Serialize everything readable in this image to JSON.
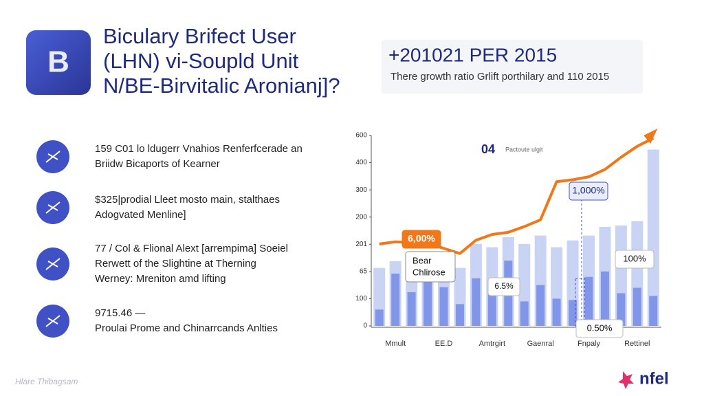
{
  "header": {
    "icon": "B",
    "title": [
      "Biculary Brifect User",
      "(LHN) vi-Soupld Unit",
      "N/BE-Birvitalic Aronianj]?"
    ]
  },
  "panel": {
    "title": "+201021 PER 2015",
    "subtitle": "There growth ratio Grlift porthilary  and 110 2015"
  },
  "items": [
    {
      "lines": [
        "159 C01 lo ldugerr Vnahios Renferfcerade an",
        "Briidw Bicaports of Kearner"
      ]
    },
    {
      "lines": [
        "$325|prodial Lleet mosto main, stalthaes",
        "Adogvated Menline]"
      ]
    },
    {
      "lines": [
        "77 / Col & Flional Alext [arrempima] Soeiel",
        "Rerwett of the Slightine at Therning",
        "Werney: Mreniton amd lifting"
      ]
    },
    {
      "lines": [
        "9715.46  —",
        "Proulai Prome and Chinarrcands Anlties"
      ]
    }
  ],
  "footer": {
    "caption": "Hlare Thibagsam",
    "logo": "nfel"
  },
  "chart_data": {
    "type": "bar",
    "categories": [
      null,
      "Mmult",
      null,
      null,
      "EE.D",
      null,
      null,
      "Amtrgirt",
      null,
      null,
      "Gaenral",
      null,
      null,
      "Fnpaly",
      null,
      null,
      "Rettinel",
      null
    ],
    "ylim": [
      0,
      700
    ],
    "yticks": [
      0,
      100,
      {
        "value": 200,
        "label": "65"
      },
      {
        "value": 300,
        "label": "201"
      },
      {
        "value": 400,
        "label": "200"
      },
      {
        "value": 500,
        "label": "300"
      },
      {
        "value": 600,
        "label": "400"
      },
      {
        "value": 700,
        "label": "600"
      }
    ],
    "series": [
      {
        "color": "#c9d3f4",
        "values": [
          213,
          238,
          200,
          238,
          200,
          213,
          301,
          289,
          326,
          301,
          332,
          289,
          314,
          332,
          364,
          369,
          385,
          648
        ]
      },
      {
        "color": "#8196e8",
        "values": [
          60,
          192,
          124,
          187,
          142,
          80,
          175,
          120,
          240,
          90,
          150,
          100,
          95,
          180,
          200,
          120,
          140,
          110
        ]
      }
    ],
    "line": {
      "color": "#f07818",
      "values": [
        301,
        309,
        306,
        304,
        285,
        266,
        315,
        336,
        344,
        365,
        390,
        530,
        537,
        548,
        575,
        620,
        660,
        690
      ]
    },
    "annotations": [
      "04",
      "Pactoute ulgit",
      "1,000%",
      "6,00%",
      "Bear",
      "Chlirose",
      "6.5%",
      "100%",
      "0.50%"
    ]
  }
}
